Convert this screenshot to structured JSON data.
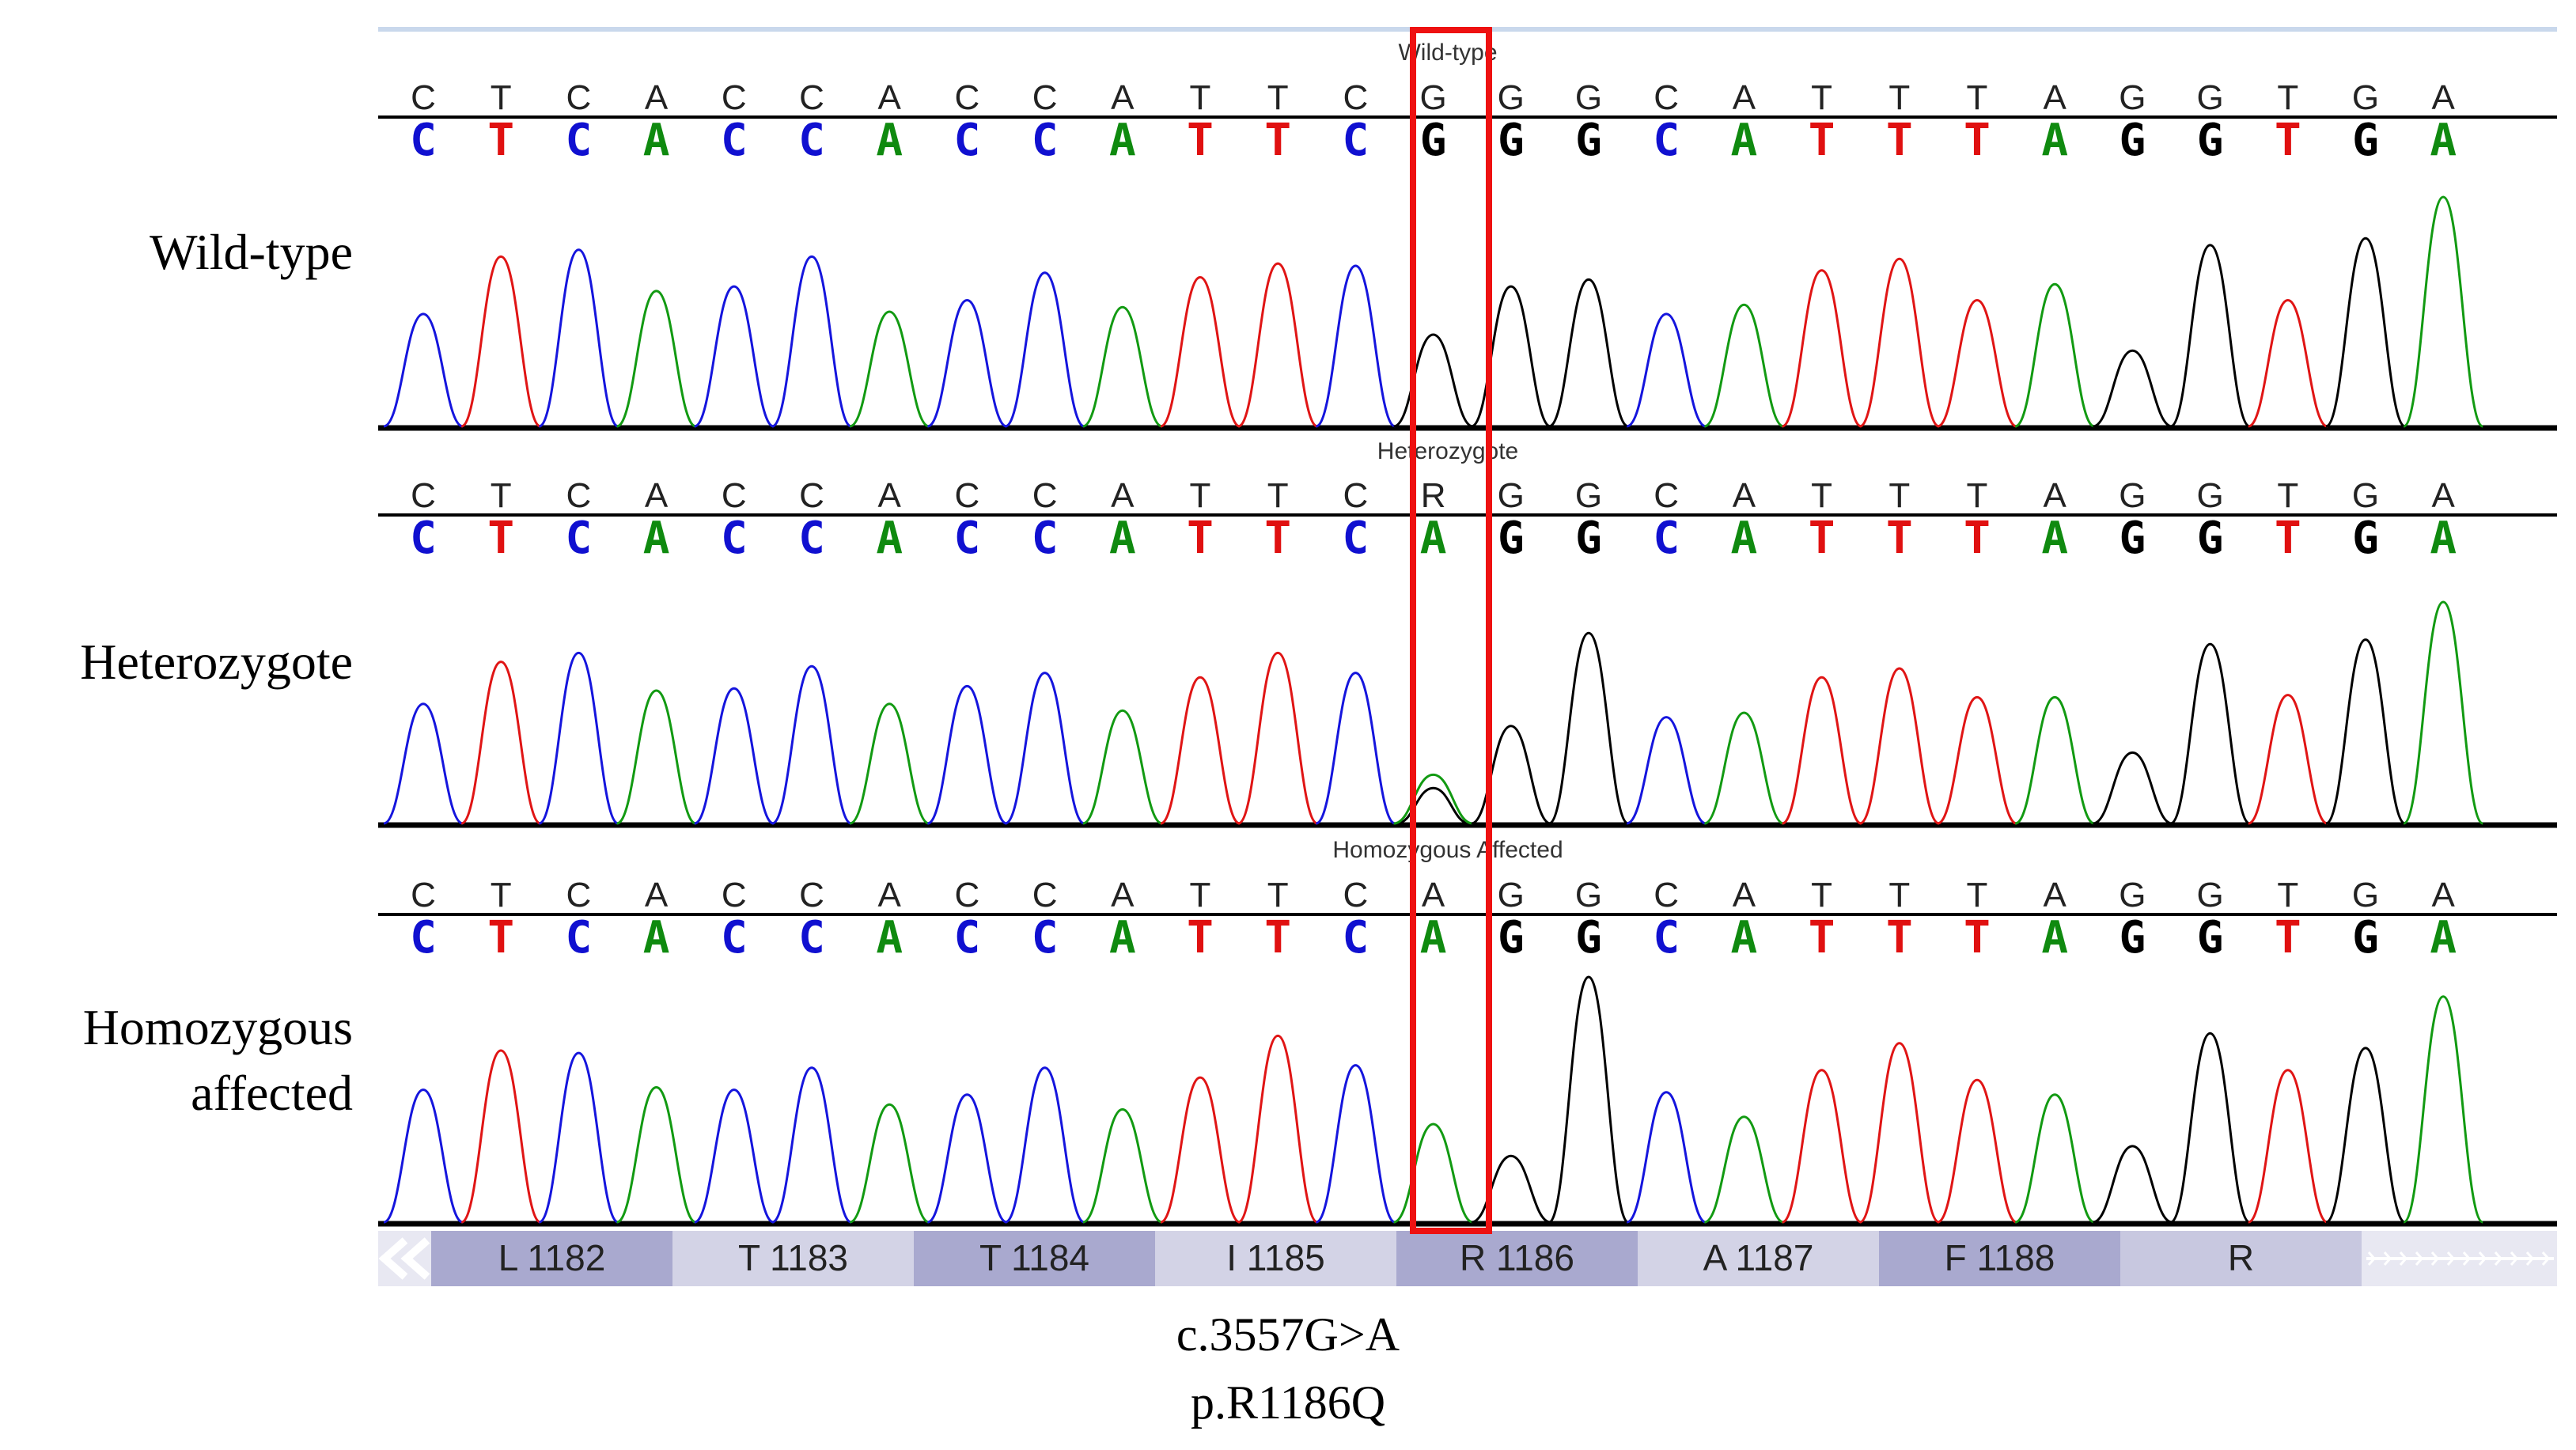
{
  "figure": {
    "panels": [
      {
        "label": "Wild-type",
        "title": "Wild-type",
        "ref_bases": [
          "C",
          "T",
          "C",
          "A",
          "C",
          "C",
          "A",
          "C",
          "C",
          "A",
          "T",
          "T",
          "C",
          "G",
          "G",
          "G",
          "C",
          "A",
          "T",
          "T",
          "T",
          "A",
          "G",
          "G",
          "T",
          "G",
          "A"
        ],
        "called_bases": [
          "C",
          "T",
          "C",
          "A",
          "C",
          "C",
          "A",
          "C",
          "C",
          "A",
          "T",
          "T",
          "C",
          "G",
          "G",
          "G",
          "C",
          "A",
          "T",
          "T",
          "T",
          "A",
          "G",
          "G",
          "T",
          "G",
          "A"
        ],
        "peak_heights": [
          0.49,
          0.74,
          0.77,
          0.59,
          0.61,
          0.74,
          0.5,
          0.55,
          0.67,
          0.52,
          0.65,
          0.71,
          0.7,
          0.4,
          0.61,
          0.64,
          0.49,
          0.53,
          0.68,
          0.73,
          0.55,
          0.62,
          0.33,
          0.79,
          0.55,
          0.82,
          1.0
        ],
        "peak_colors": [
          "blue",
          "red",
          "blue",
          "green",
          "blue",
          "blue",
          "green",
          "blue",
          "blue",
          "green",
          "red",
          "red",
          "blue",
          "black",
          "black",
          "black",
          "blue",
          "green",
          "red",
          "red",
          "red",
          "green",
          "black",
          "black",
          "red",
          "black",
          "green"
        ],
        "minor_peaks": []
      },
      {
        "label": "Heterozygote",
        "title": "Heterozygote",
        "ref_bases": [
          "C",
          "T",
          "C",
          "A",
          "C",
          "C",
          "A",
          "C",
          "C",
          "A",
          "T",
          "T",
          "C",
          "R",
          "G",
          "G",
          "C",
          "A",
          "T",
          "T",
          "T",
          "A",
          "G",
          "G",
          "T",
          "G",
          "A"
        ],
        "called_bases": [
          "C",
          "T",
          "C",
          "A",
          "C",
          "C",
          "A",
          "C",
          "C",
          "A",
          "T",
          "T",
          "C",
          "A",
          "G",
          "G",
          "C",
          "A",
          "T",
          "T",
          "T",
          "A",
          "G",
          "G",
          "T",
          "G",
          "A"
        ],
        "peak_heights": [
          0.54,
          0.73,
          0.77,
          0.6,
          0.61,
          0.71,
          0.54,
          0.62,
          0.68,
          0.51,
          0.66,
          0.77,
          0.68,
          0.22,
          0.44,
          0.86,
          0.48,
          0.5,
          0.66,
          0.7,
          0.57,
          0.57,
          0.32,
          0.81,
          0.58,
          0.83,
          1.0
        ],
        "peak_colors": [
          "blue",
          "red",
          "blue",
          "green",
          "blue",
          "blue",
          "green",
          "blue",
          "blue",
          "green",
          "red",
          "red",
          "blue",
          "green",
          "black",
          "black",
          "blue",
          "green",
          "red",
          "red",
          "red",
          "green",
          "black",
          "black",
          "red",
          "black",
          "green"
        ],
        "minor_peaks": [
          {
            "index": 13,
            "color": "black",
            "height": 0.16
          }
        ]
      },
      {
        "label": "Homozygous affected",
        "title": "Homozygous Affected",
        "ref_bases": [
          "C",
          "T",
          "C",
          "A",
          "C",
          "C",
          "A",
          "C",
          "C",
          "A",
          "T",
          "T",
          "C",
          "A",
          "G",
          "G",
          "C",
          "A",
          "T",
          "T",
          "T",
          "A",
          "G",
          "G",
          "T",
          "G",
          "A"
        ],
        "called_bases": [
          "C",
          "T",
          "C",
          "A",
          "C",
          "C",
          "A",
          "C",
          "C",
          "A",
          "T",
          "T",
          "C",
          "A",
          "G",
          "G",
          "C",
          "A",
          "T",
          "T",
          "T",
          "A",
          "G",
          "G",
          "T",
          "G",
          "A"
        ],
        "peak_heights": [
          0.54,
          0.7,
          0.69,
          0.55,
          0.54,
          0.63,
          0.48,
          0.52,
          0.63,
          0.46,
          0.59,
          0.76,
          0.64,
          0.4,
          0.27,
          1.0,
          0.53,
          0.43,
          0.62,
          0.73,
          0.58,
          0.52,
          0.31,
          0.77,
          0.62,
          0.71,
          0.92
        ],
        "peak_colors": [
          "blue",
          "red",
          "blue",
          "green",
          "blue",
          "blue",
          "green",
          "blue",
          "blue",
          "green",
          "red",
          "red",
          "blue",
          "green",
          "black",
          "black",
          "blue",
          "green",
          "red",
          "red",
          "red",
          "green",
          "black",
          "black",
          "red",
          "black",
          "green"
        ],
        "minor_peaks": []
      }
    ],
    "panel_labels": [
      "Wild-type",
      "Heterozygote",
      "Homozygous",
      "affected"
    ],
    "amino_acids": [
      "L 1182",
      "T 1183",
      "T 1184",
      "I 1185",
      "R 1186",
      "A 1187",
      "F 1188",
      "R"
    ],
    "highlight_index": 13,
    "mutation": {
      "cdna": "c.3557G>A",
      "protein": "p.R1186Q"
    },
    "colors": {
      "A": "#0f8a0f",
      "C": "#1010d0",
      "G": "#000000",
      "T": "#e01010",
      "R": "#e040a0",
      "highlight_box": "#ee1111",
      "aa_band_dark": "#a9a9cf",
      "aa_band_light": "#d3d3e6",
      "aa_band_last": "#c8c8e0",
      "aa_R_text": "#20b0c8"
    }
  }
}
